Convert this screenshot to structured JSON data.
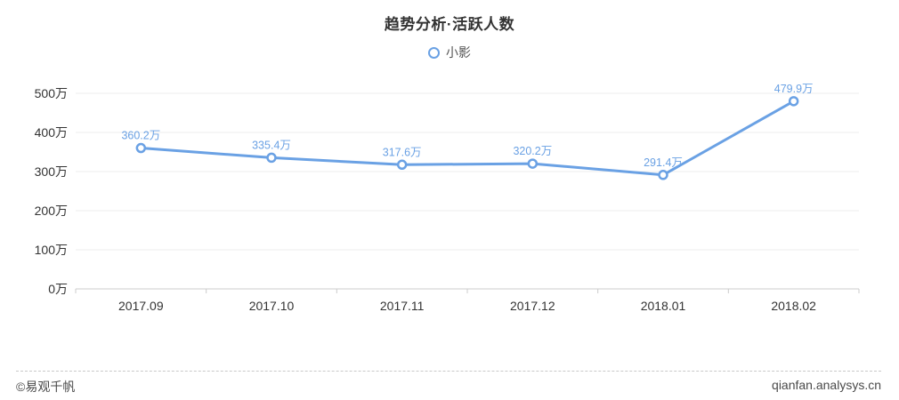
{
  "page": {
    "title": "趋势分析·活跃人数"
  },
  "legend": {
    "items": [
      {
        "label": "小影",
        "marker": "circle-outline-icon",
        "color": "#6aa1e4"
      }
    ]
  },
  "chart_data": {
    "type": "line",
    "title": "趋势分析·活跃人数",
    "categories": [
      "2017.09",
      "2017.10",
      "2017.11",
      "2017.12",
      "2018.01",
      "2018.02"
    ],
    "series": [
      {
        "name": "小影",
        "values": [
          360.2,
          335.4,
          317.6,
          320.2,
          291.4,
          479.9
        ],
        "value_labels": [
          "360.2万",
          "335.4万",
          "317.6万",
          "320.2万",
          "291.4万",
          "479.9万"
        ],
        "color": "#6aa1e4"
      }
    ],
    "xlabel": "",
    "ylabel": "",
    "ylim": [
      0,
      500
    ],
    "y_tick_values": [
      0,
      100,
      200,
      300,
      400,
      500
    ],
    "y_tick_labels": [
      "0万",
      "100万",
      "200万",
      "300万",
      "400万",
      "500万"
    ],
    "unit": "万",
    "grid": true,
    "legend_position": "top"
  },
  "footer": {
    "copyright": "©易观千帆",
    "site": "qianfan.analysys.cn"
  },
  "colors": {
    "accent": "#6aa1e4",
    "grid_line": "#ececec",
    "axis_line": "#cccccc",
    "tick": "#cccccc",
    "axis_text": "#333333",
    "label_text": "#6aa1e4",
    "muted_text": "#4a4a4a",
    "marker_fill": "#ffffff"
  }
}
